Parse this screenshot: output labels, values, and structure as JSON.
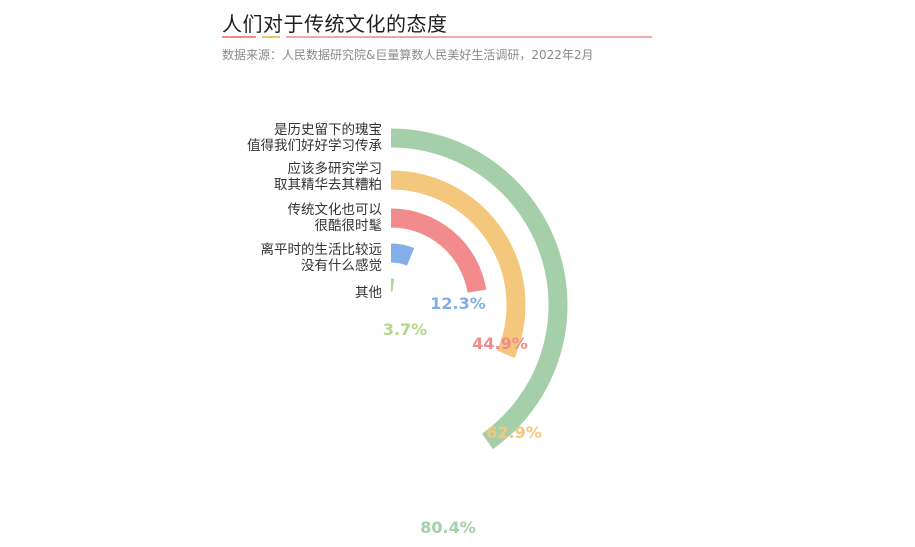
{
  "header": {
    "title": "人们对于传统文化的态度",
    "source": "数据来源：人民数据研究院&巨量算数人民美好生活调研，2022年2月"
  },
  "chart_data": {
    "type": "radial-bar",
    "unit": "%",
    "max": 100,
    "categories": [
      "是历史留下的瑰宝值得我们好好学习传承",
      "应该多研究学习取其精华去其糟粕",
      "传统文化也可以很酷很时髦",
      "离平时的生活比较远没有什么感觉",
      "其他"
    ],
    "category_lines": [
      [
        "是历史留下的瑰宝",
        "值得我们好好学习传承"
      ],
      [
        "应该多研究学习",
        "取其精华去其糟粕"
      ],
      [
        "传统文化也可以",
        "很酷很时髦"
      ],
      [
        "离平时的生活比较远",
        "没有什么感觉"
      ],
      [
        "其他"
      ]
    ],
    "values": [
      80.4,
      62.9,
      44.9,
      12.3,
      3.7
    ],
    "value_labels": [
      "80.4%",
      "62.9%",
      "44.9%",
      "12.3%",
      "3.7%"
    ],
    "colors": [
      "#a5cfa8",
      "#f4c87c",
      "#f28b8b",
      "#84aee8",
      "#b2d88c"
    ]
  }
}
